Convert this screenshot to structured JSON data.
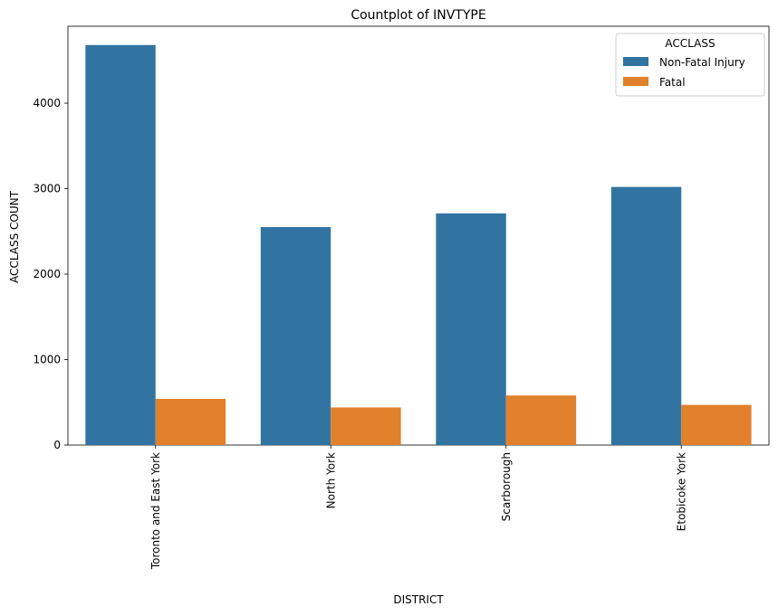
{
  "chart_data": {
    "type": "bar",
    "title": "Countplot of INVTYPE",
    "xlabel": "DISTRICT",
    "ylabel": "ACCLASS COUNT",
    "categories": [
      "Toronto and East York",
      "North York",
      "Scarborough",
      "Etobicoke York"
    ],
    "series": [
      {
        "name": "Non-Fatal Injury",
        "color": "#3274a1",
        "values": [
          4680,
          2550,
          2710,
          3020
        ]
      },
      {
        "name": "Fatal",
        "color": "#e1812c",
        "values": [
          540,
          440,
          580,
          470
        ]
      }
    ],
    "ylim": [
      0,
      4900
    ],
    "yticks": [
      0,
      1000,
      2000,
      3000,
      4000
    ],
    "legend": {
      "title": "ACCLASS",
      "placement": "top-right"
    },
    "grid": false
  }
}
